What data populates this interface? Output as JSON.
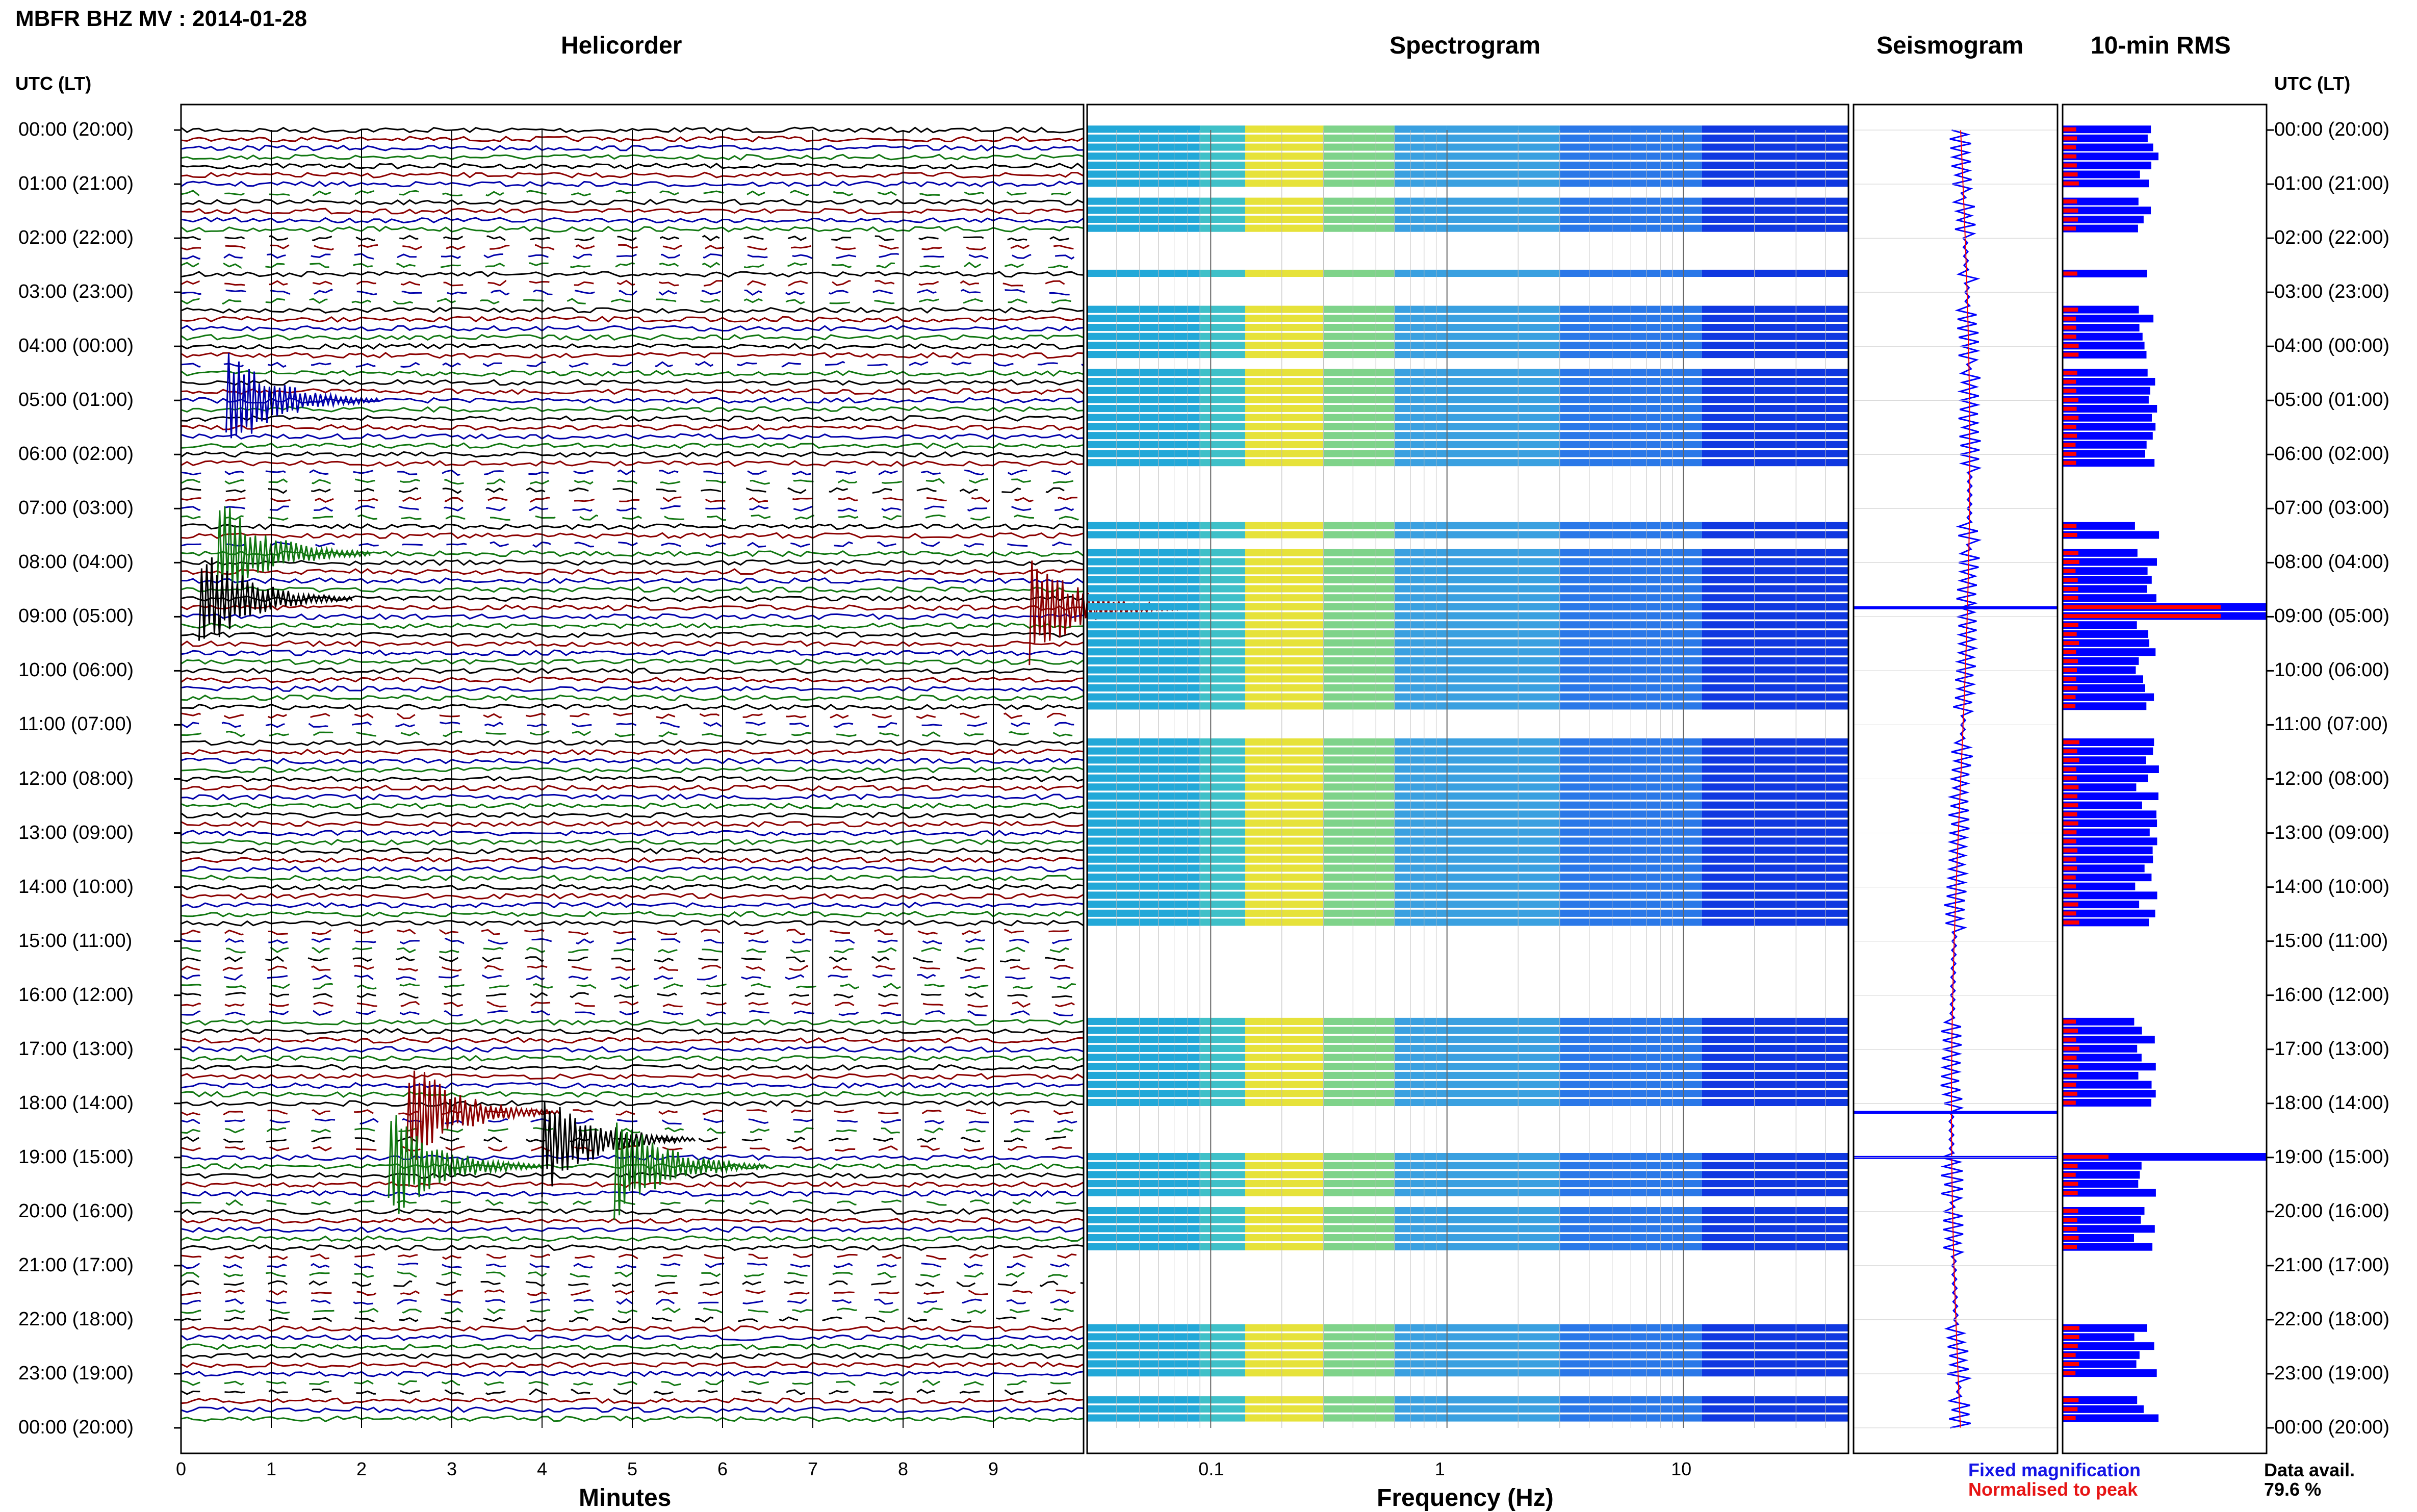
{
  "title": "MBFR BHZ MV : 2014-01-28",
  "panels": {
    "helicorder": "Helicorder",
    "spectrogram": "Spectrogram",
    "seismogram": "Seismogram",
    "rms": "10-min RMS"
  },
  "time_axis_label": "UTC (LT)",
  "legend": {
    "fixed": "Fixed magnification",
    "normalised": "Normalised to peak",
    "fixed_color": "#1414e6",
    "normalised_color": "#e61414"
  },
  "data_avail": {
    "label": "Data avail.",
    "value": "79.6 %"
  },
  "colors": {
    "trace_cycle": [
      "#000000",
      "#8b0000",
      "#0000aa",
      "#117711"
    ],
    "rms_fixed": "#0000ff",
    "rms_norm": "#ff0000"
  },
  "chart_data": [
    {
      "type": "line",
      "panel": "helicorder",
      "xlabel": "Minutes",
      "x_ticks": [
        "0",
        "1",
        "2",
        "3",
        "4",
        "5",
        "6",
        "7",
        "8",
        "9"
      ],
      "xlim": [
        0,
        10
      ],
      "rows_per_hour": 6,
      "y_ticks": [
        "00:00 (20:00)",
        "01:00 (21:00)",
        "02:00 (22:00)",
        "03:00 (23:00)",
        "04:00 (00:00)",
        "05:00 (01:00)",
        "06:00 (02:00)",
        "07:00 (03:00)",
        "08:00 (04:00)",
        "09:00 (05:00)",
        "10:00 (06:00)",
        "11:00 (07:00)",
        "12:00 (08:00)",
        "13:00 (09:00)",
        "14:00 (10:00)",
        "15:00 (11:00)",
        "16:00 (12:00)",
        "17:00 (13:00)",
        "18:00 (14:00)",
        "19:00 (15:00)",
        "20:00 (16:00)",
        "21:00 (17:00)",
        "22:00 (18:00)",
        "23:00 (19:00)",
        "00:00 (20:00)"
      ],
      "events": [
        {
          "time": "05:00",
          "minute": 0.5
        },
        {
          "time": "07:50",
          "minute": 0.4
        },
        {
          "time": "08:40",
          "minute": 0.2
        },
        {
          "time": "08:50",
          "minute": 9.4
        },
        {
          "time": "18:10",
          "minute": 2.5
        },
        {
          "time": "18:40",
          "minute": 4.0
        },
        {
          "time": "19:10",
          "minute": 2.3
        },
        {
          "time": "19:10",
          "minute": 4.8
        }
      ]
    },
    {
      "type": "heatmap",
      "panel": "spectrogram",
      "xlabel": "Frequency (Hz)",
      "x_ticks": [
        "0.1",
        "1",
        "10"
      ],
      "x_scale": "log",
      "xlim": [
        0.03,
        50
      ],
      "data_gaps": [
        [
          "01:10",
          "01:20"
        ],
        [
          "02:00",
          "02:40"
        ],
        [
          "02:50",
          "03:20"
        ],
        [
          "04:20",
          "04:30"
        ],
        [
          "06:20",
          "07:20"
        ],
        [
          "07:40",
          "07:50"
        ],
        [
          "10:50",
          "11:20"
        ],
        [
          "14:50",
          "16:30"
        ],
        [
          "18:10",
          "19:00"
        ],
        [
          "19:50",
          "20:00"
        ],
        [
          "20:50",
          "22:10"
        ],
        [
          "23:10",
          "23:30"
        ]
      ]
    },
    {
      "type": "line",
      "panel": "seismogram",
      "ylim": [
        "00:00",
        "24:00"
      ]
    },
    {
      "type": "bar",
      "panel": "rms",
      "interval_minutes": 10,
      "series": [
        {
          "name": "Fixed magnification"
        },
        {
          "name": "Normalised to peak"
        }
      ]
    }
  ]
}
